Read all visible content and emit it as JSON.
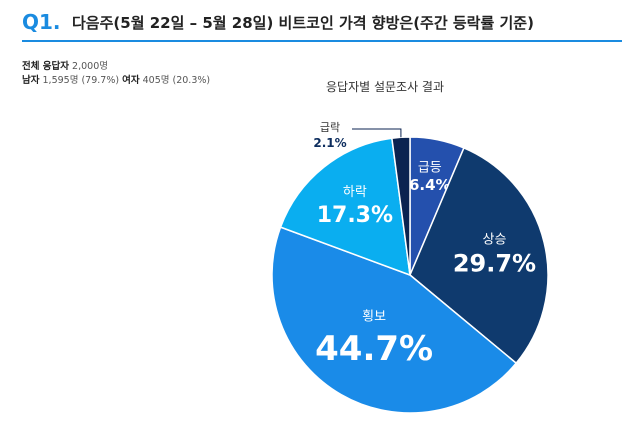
{
  "header": {
    "qnum": "Q1.",
    "title": "다음주(5월 22일 – 5월 28일)  비트코인 가격 향방은(주간 등락률 기준)"
  },
  "respondents": {
    "total_label": "전체 응답자",
    "total_value": "2,000명",
    "male_label": "남자",
    "male_value": "1,595명 (79.7%)",
    "female_label": "여자",
    "female_value": "405명 (20.3%)"
  },
  "chart_data": {
    "type": "pie",
    "title": "응답자별 설문조사 결과",
    "categories": [
      "급등",
      "상승",
      "횡보",
      "하락",
      "급락"
    ],
    "values": [
      6.4,
      29.7,
      44.7,
      17.3,
      2.1
    ],
    "value_labels": [
      "6.4%",
      "29.7%",
      "44.7%",
      "17.3%",
      "2.1%"
    ],
    "colors": [
      "#2450ad",
      "#0f3a6e",
      "#1a8be8",
      "#0aaef0",
      "#0b2350"
    ]
  }
}
